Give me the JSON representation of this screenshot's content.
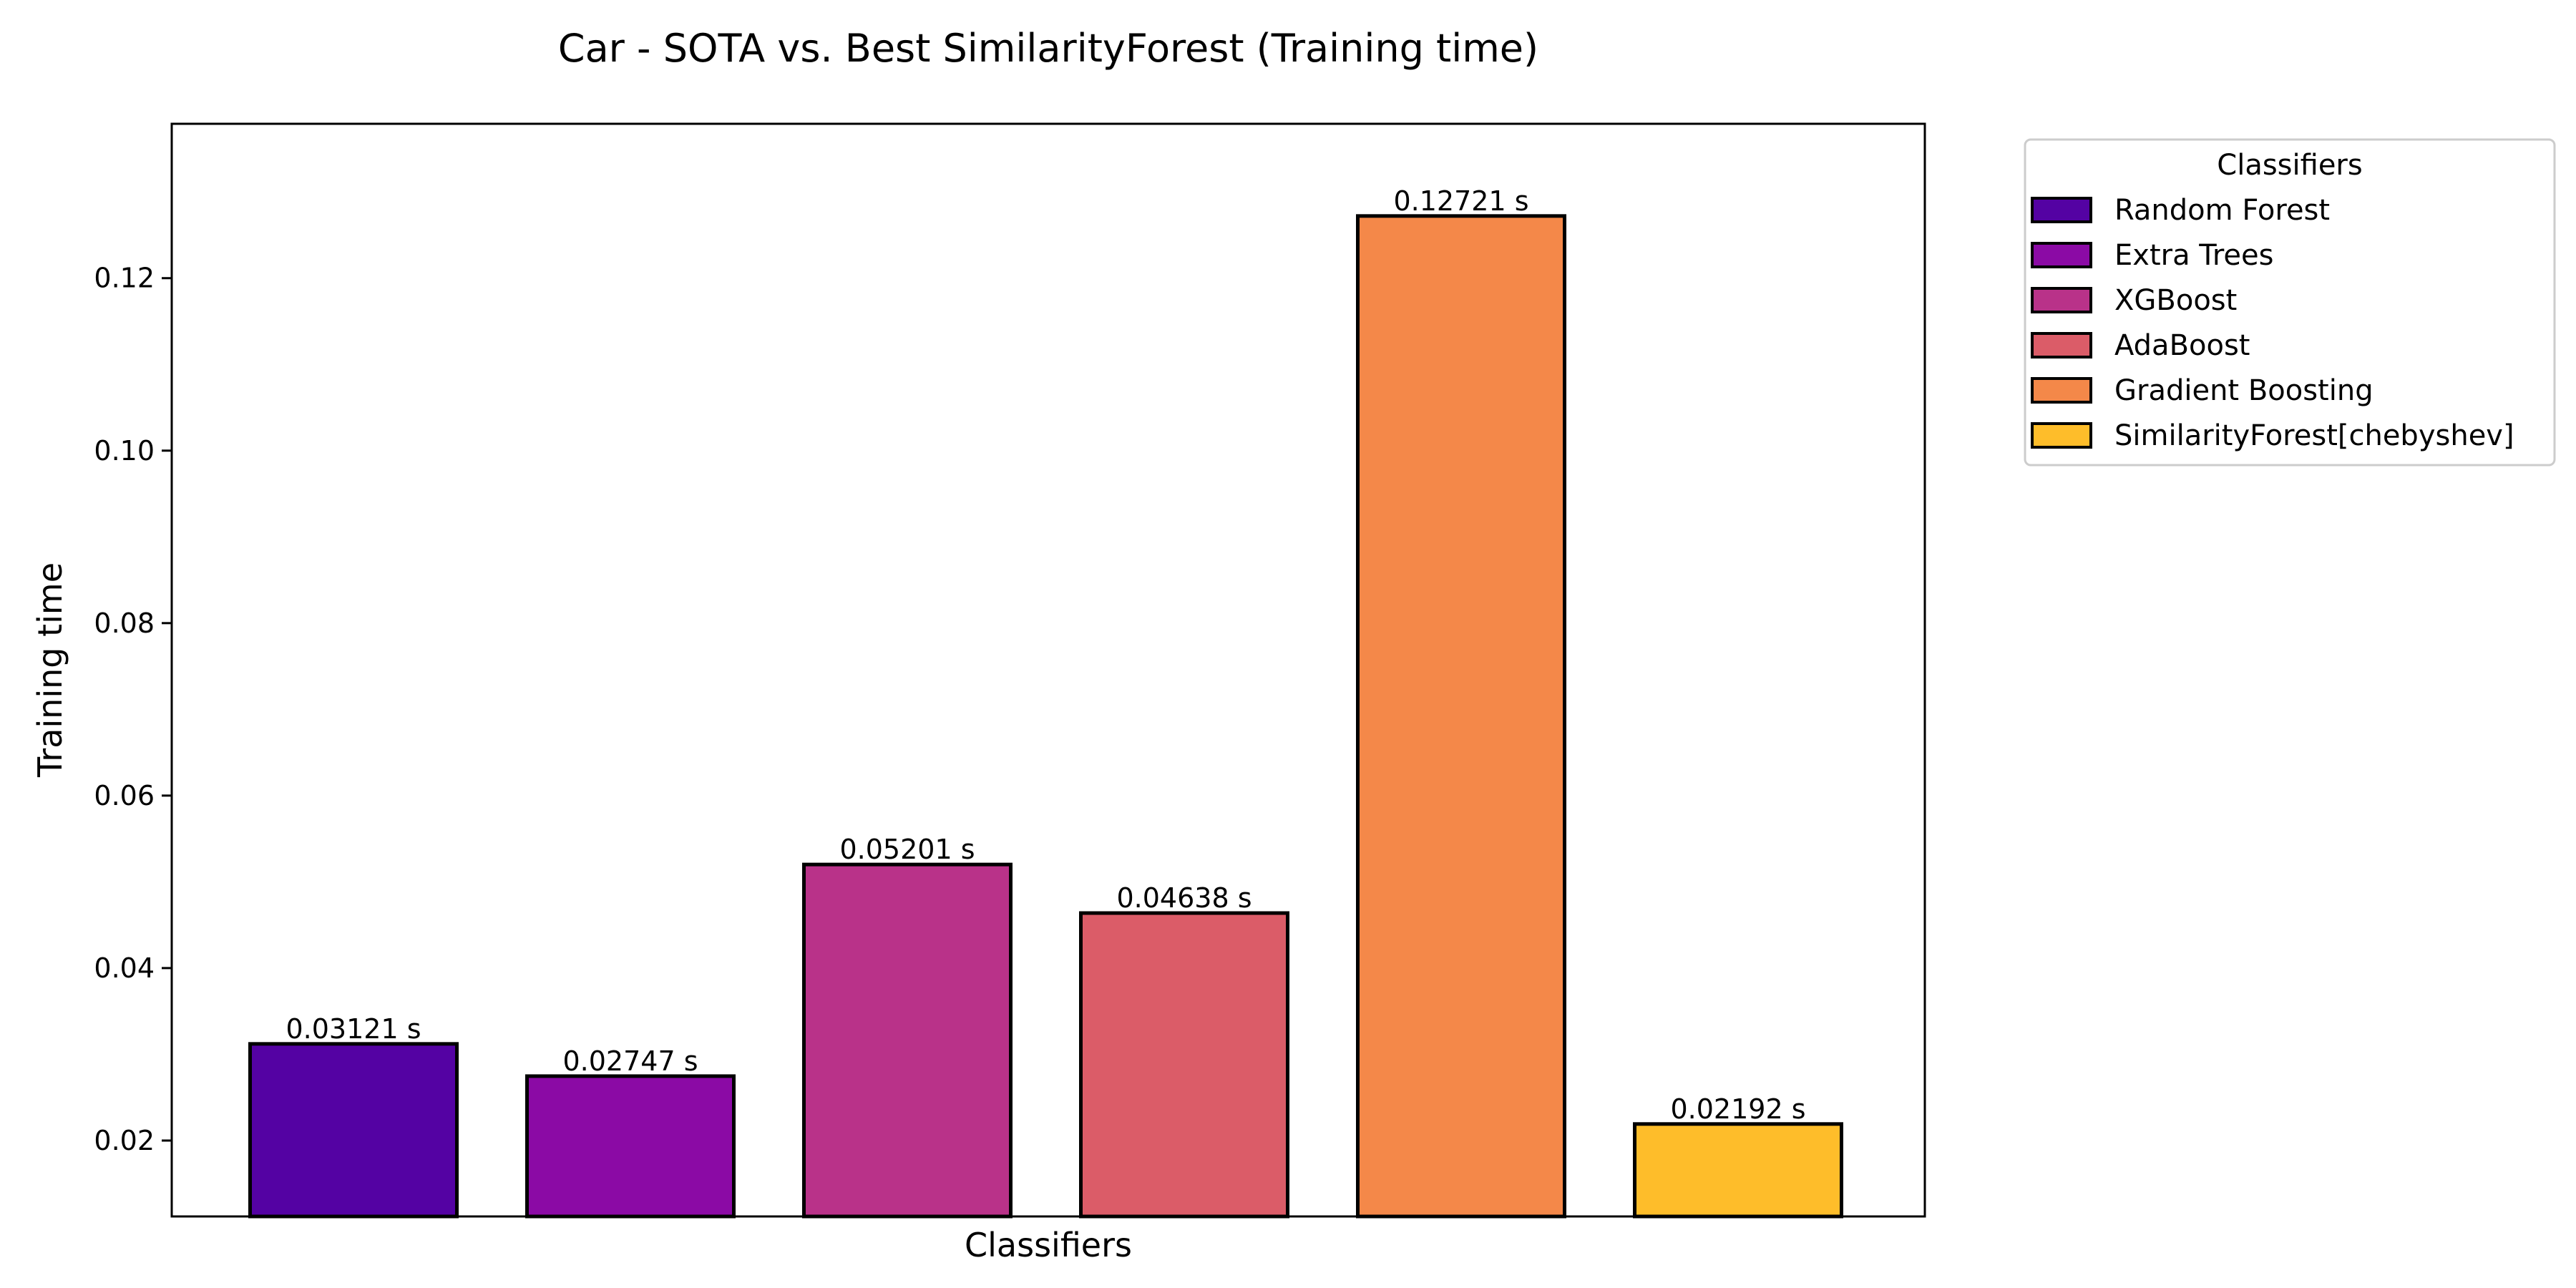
{
  "chart_data": {
    "type": "bar",
    "title": "Car - SOTA vs. Best SimilarityForest (Training time)",
    "xlabel": "Classifiers",
    "ylabel": "Training time",
    "categories": [
      "Random Forest",
      "Extra Trees",
      "XGBoost",
      "AdaBoost",
      "Gradient Boosting",
      "SimilarityForest[chebyshev]"
    ],
    "values": [
      0.03121,
      0.02747,
      0.05201,
      0.04638,
      0.12721,
      0.02192
    ],
    "data_labels": [
      "0.03121 s",
      "0.02747 s",
      "0.05201 s",
      "0.04638 s",
      "0.12721 s",
      "0.02192 s"
    ],
    "colors": [
      "#5402a3",
      "#8b0aa5",
      "#b93289",
      "#db5c68",
      "#f48849",
      "#febd2a"
    ],
    "ylim": [
      0.0112,
      0.1379
    ],
    "yticks": [
      0.02,
      0.04,
      0.06,
      0.08,
      0.1,
      0.12
    ],
    "ytick_labels": [
      "0.02",
      "0.04",
      "0.06",
      "0.08",
      "0.10",
      "0.12"
    ],
    "grid": false,
    "legend": {
      "title": "Classifiers",
      "placement": "outside-top-right",
      "entries": [
        "Random Forest",
        "Extra Trees",
        "XGBoost",
        "AdaBoost",
        "Gradient Boosting",
        "SimilarityForest[chebyshev]"
      ]
    }
  }
}
